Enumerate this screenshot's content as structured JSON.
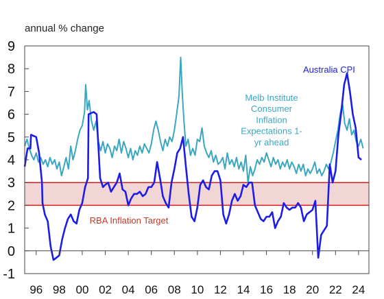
{
  "chart_data": {
    "type": "line",
    "ylabel": "annual % change",
    "ylim": [
      -1,
      9
    ],
    "xlim": [
      1995,
      2024.9
    ],
    "yticks": [
      "9",
      "8",
      "7",
      "6",
      "5",
      "4",
      "3",
      "2",
      "1",
      "0",
      "-1"
    ],
    "xticks": [
      "96",
      "98",
      "00",
      "02",
      "04",
      "06",
      "08",
      "10",
      "12",
      "14",
      "16",
      "18",
      "20",
      "22",
      "24"
    ],
    "grid": false,
    "band": {
      "label": "RBA Inflation Target",
      "low": 2,
      "high": 3,
      "color": "#f2d6d6",
      "line_color": "#d41e1e"
    },
    "series": [
      {
        "name": "Melb Institute Consumer Inflation Expectations 1-yr ahead",
        "color": "#3aa6c0",
        "points": [
          [
            1995.0,
            4.6
          ],
          [
            1995.2,
            4.9
          ],
          [
            1995.4,
            4.5
          ],
          [
            1995.6,
            4.2
          ],
          [
            1995.8,
            4.0
          ],
          [
            1996.0,
            4.3
          ],
          [
            1996.2,
            3.9
          ],
          [
            1996.4,
            4.1
          ],
          [
            1996.6,
            3.8
          ],
          [
            1996.8,
            4.0
          ],
          [
            1997.0,
            3.7
          ],
          [
            1997.2,
            4.1
          ],
          [
            1997.4,
            3.8
          ],
          [
            1997.6,
            4.0
          ],
          [
            1997.8,
            3.6
          ],
          [
            1998.0,
            3.9
          ],
          [
            1998.2,
            3.3
          ],
          [
            1998.4,
            3.7
          ],
          [
            1998.6,
            4.1
          ],
          [
            1998.8,
            3.6
          ],
          [
            1999.0,
            4.6
          ],
          [
            1999.2,
            4.0
          ],
          [
            1999.4,
            4.4
          ],
          [
            1999.6,
            4.9
          ],
          [
            1999.8,
            5.3
          ],
          [
            2000.0,
            5.5
          ],
          [
            2000.2,
            6.1
          ],
          [
            2000.3,
            7.3
          ],
          [
            2000.45,
            6.2
          ],
          [
            2000.6,
            6.6
          ],
          [
            2000.8,
            5.7
          ],
          [
            2001.0,
            5.3
          ],
          [
            2001.2,
            5.7
          ],
          [
            2001.4,
            4.8
          ],
          [
            2001.6,
            4.4
          ],
          [
            2001.8,
            4.8
          ],
          [
            2002.0,
            4.3
          ],
          [
            2002.2,
            4.7
          ],
          [
            2002.4,
            4.5
          ],
          [
            2002.6,
            4.1
          ],
          [
            2002.8,
            4.6
          ],
          [
            2003.0,
            4.4
          ],
          [
            2003.2,
            4.9
          ],
          [
            2003.4,
            4.3
          ],
          [
            2003.6,
            4.8
          ],
          [
            2003.8,
            4.5
          ],
          [
            2004.0,
            4.1
          ],
          [
            2004.2,
            4.5
          ],
          [
            2004.4,
            4.0
          ],
          [
            2004.6,
            4.4
          ],
          [
            2004.8,
            4.2
          ],
          [
            2005.0,
            4.6
          ],
          [
            2005.2,
            4.3
          ],
          [
            2005.4,
            4.7
          ],
          [
            2005.6,
            4.5
          ],
          [
            2005.8,
            4.3
          ],
          [
            2006.0,
            4.7
          ],
          [
            2006.2,
            5.3
          ],
          [
            2006.4,
            5.7
          ],
          [
            2006.6,
            5.3
          ],
          [
            2006.8,
            4.8
          ],
          [
            2007.0,
            4.4
          ],
          [
            2007.2,
            4.9
          ],
          [
            2007.4,
            4.6
          ],
          [
            2007.6,
            5.0
          ],
          [
            2007.8,
            4.8
          ],
          [
            2008.0,
            5.3
          ],
          [
            2008.2,
            6.0
          ],
          [
            2008.4,
            6.8
          ],
          [
            2008.55,
            8.5
          ],
          [
            2008.7,
            6.8
          ],
          [
            2008.85,
            5.6
          ],
          [
            2009.0,
            4.6
          ],
          [
            2009.2,
            4.9
          ],
          [
            2009.4,
            4.2
          ],
          [
            2009.6,
            4.5
          ],
          [
            2009.8,
            4.2
          ],
          [
            2010.0,
            4.9
          ],
          [
            2010.2,
            4.8
          ],
          [
            2010.4,
            5.4
          ],
          [
            2010.6,
            4.6
          ],
          [
            2010.8,
            4.3
          ],
          [
            2011.0,
            4.1
          ],
          [
            2011.2,
            4.4
          ],
          [
            2011.4,
            3.9
          ],
          [
            2011.6,
            4.2
          ],
          [
            2011.8,
            3.8
          ],
          [
            2012.0,
            3.9
          ],
          [
            2012.2,
            4.1
          ],
          [
            2012.4,
            3.6
          ],
          [
            2012.6,
            4.3
          ],
          [
            2012.8,
            3.8
          ],
          [
            2013.0,
            4.0
          ],
          [
            2013.2,
            3.7
          ],
          [
            2013.4,
            4.1
          ],
          [
            2013.6,
            3.6
          ],
          [
            2013.8,
            3.9
          ],
          [
            2014.0,
            3.5
          ],
          [
            2014.2,
            4.2
          ],
          [
            2014.4,
            3.0
          ],
          [
            2014.6,
            3.7
          ],
          [
            2014.8,
            3.3
          ],
          [
            2015.0,
            3.6
          ],
          [
            2015.2,
            4.0
          ],
          [
            2015.4,
            3.8
          ],
          [
            2015.6,
            4.1
          ],
          [
            2015.8,
            3.9
          ],
          [
            2016.0,
            4.3
          ],
          [
            2016.2,
            4.0
          ],
          [
            2016.4,
            3.7
          ],
          [
            2016.6,
            4.1
          ],
          [
            2016.8,
            3.8
          ],
          [
            2017.0,
            4.0
          ],
          [
            2017.2,
            3.6
          ],
          [
            2017.4,
            3.9
          ],
          [
            2017.6,
            3.7
          ],
          [
            2017.8,
            4.0
          ],
          [
            2018.0,
            3.6
          ],
          [
            2018.2,
            3.9
          ],
          [
            2018.4,
            3.7
          ],
          [
            2018.6,
            3.4
          ],
          [
            2018.8,
            3.8
          ],
          [
            2019.0,
            3.5
          ],
          [
            2019.2,
            3.8
          ],
          [
            2019.4,
            3.3
          ],
          [
            2019.6,
            3.6
          ],
          [
            2019.8,
            3.4
          ],
          [
            2020.0,
            3.6
          ],
          [
            2020.2,
            3.9
          ],
          [
            2020.4,
            3.4
          ],
          [
            2020.6,
            3.6
          ],
          [
            2020.8,
            3.3
          ],
          [
            2021.0,
            3.5
          ],
          [
            2021.2,
            3.8
          ],
          [
            2021.4,
            3.6
          ],
          [
            2021.6,
            3.9
          ],
          [
            2021.8,
            4.3
          ],
          [
            2022.0,
            4.8
          ],
          [
            2022.2,
            5.3
          ],
          [
            2022.4,
            6.0
          ],
          [
            2022.6,
            6.5
          ],
          [
            2022.8,
            5.6
          ],
          [
            2023.0,
            5.3
          ],
          [
            2023.2,
            5.8
          ],
          [
            2023.4,
            5.1
          ],
          [
            2023.6,
            5.3
          ],
          [
            2023.8,
            4.8
          ],
          [
            2024.0,
            4.6
          ],
          [
            2024.2,
            4.9
          ],
          [
            2024.4,
            4.5
          ]
        ]
      },
      {
        "name": "Australia CPI",
        "color": "#1c1ce6",
        "points": [
          [
            1995.0,
            3.7
          ],
          [
            1995.25,
            4.5
          ],
          [
            1995.5,
            4.5
          ],
          [
            1995.55,
            5.1
          ],
          [
            1996.0,
            5.0
          ],
          [
            1996.25,
            4.3
          ],
          [
            1996.5,
            3.0
          ],
          [
            1996.55,
            2.1
          ],
          [
            1996.75,
            1.6
          ],
          [
            1997.0,
            1.3
          ],
          [
            1997.25,
            0.2
          ],
          [
            1997.5,
            -0.4
          ],
          [
            1997.75,
            -0.3
          ],
          [
            1998.0,
            -0.2
          ],
          [
            1998.25,
            0.5
          ],
          [
            1998.5,
            1.0
          ],
          [
            1998.75,
            1.4
          ],
          [
            1999.0,
            1.6
          ],
          [
            1999.25,
            1.3
          ],
          [
            1999.5,
            1.2
          ],
          [
            1999.75,
            1.8
          ],
          [
            2000.0,
            2.1
          ],
          [
            2000.25,
            2.8
          ],
          [
            2000.5,
            3.2
          ],
          [
            2000.55,
            6.0
          ],
          [
            2001.0,
            6.1
          ],
          [
            2001.25,
            6.0
          ],
          [
            2001.55,
            3.2
          ],
          [
            2001.8,
            2.8
          ],
          [
            2002.0,
            2.9
          ],
          [
            2002.25,
            3.0
          ],
          [
            2002.5,
            2.6
          ],
          [
            2002.75,
            2.8
          ],
          [
            2003.0,
            3.0
          ],
          [
            2003.25,
            3.4
          ],
          [
            2003.5,
            2.7
          ],
          [
            2003.75,
            2.6
          ],
          [
            2004.0,
            2.0
          ],
          [
            2004.25,
            2.3
          ],
          [
            2004.5,
            2.5
          ],
          [
            2004.75,
            2.5
          ],
          [
            2005.0,
            2.6
          ],
          [
            2005.25,
            2.4
          ],
          [
            2005.5,
            2.5
          ],
          [
            2005.75,
            2.8
          ],
          [
            2006.0,
            2.8
          ],
          [
            2006.25,
            3.0
          ],
          [
            2006.5,
            3.9
          ],
          [
            2006.75,
            3.2
          ],
          [
            2007.0,
            2.4
          ],
          [
            2007.25,
            2.1
          ],
          [
            2007.5,
            1.9
          ],
          [
            2007.75,
            3.0
          ],
          [
            2008.0,
            3.6
          ],
          [
            2008.25,
            4.3
          ],
          [
            2008.5,
            4.5
          ],
          [
            2008.75,
            5.0
          ],
          [
            2009.0,
            3.7
          ],
          [
            2009.25,
            2.5
          ],
          [
            2009.5,
            1.5
          ],
          [
            2009.75,
            1.3
          ],
          [
            2010.0,
            1.9
          ],
          [
            2010.25,
            2.9
          ],
          [
            2010.5,
            3.1
          ],
          [
            2010.75,
            2.8
          ],
          [
            2011.0,
            2.7
          ],
          [
            2011.25,
            3.3
          ],
          [
            2011.5,
            3.5
          ],
          [
            2011.75,
            3.5
          ],
          [
            2012.0,
            3.1
          ],
          [
            2012.25,
            1.6
          ],
          [
            2012.5,
            1.2
          ],
          [
            2012.75,
            1.6
          ],
          [
            2013.0,
            2.2
          ],
          [
            2013.25,
            2.5
          ],
          [
            2013.5,
            2.2
          ],
          [
            2013.75,
            2.4
          ],
          [
            2014.0,
            2.9
          ],
          [
            2014.25,
            2.8
          ],
          [
            2014.5,
            3.0
          ],
          [
            2014.75,
            3.0
          ],
          [
            2015.0,
            2.0
          ],
          [
            2015.25,
            1.7
          ],
          [
            2015.5,
            1.4
          ],
          [
            2015.75,
            1.3
          ],
          [
            2016.0,
            1.5
          ],
          [
            2016.25,
            1.5
          ],
          [
            2016.5,
            1.7
          ],
          [
            2016.75,
            1.0
          ],
          [
            2017.0,
            1.3
          ],
          [
            2017.25,
            1.5
          ],
          [
            2017.5,
            2.1
          ],
          [
            2017.75,
            1.9
          ],
          [
            2018.0,
            1.8
          ],
          [
            2018.25,
            1.9
          ],
          [
            2018.5,
            1.9
          ],
          [
            2018.75,
            2.1
          ],
          [
            2019.0,
            1.9
          ],
          [
            2019.25,
            1.3
          ],
          [
            2019.5,
            1.6
          ],
          [
            2019.75,
            1.7
          ],
          [
            2020.0,
            1.8
          ],
          [
            2020.25,
            2.2
          ],
          [
            2020.5,
            -0.3
          ],
          [
            2020.75,
            0.7
          ],
          [
            2021.0,
            0.9
          ],
          [
            2021.25,
            1.1
          ],
          [
            2021.5,
            3.8
          ],
          [
            2021.75,
            3.0
          ],
          [
            2022.0,
            3.5
          ],
          [
            2022.25,
            5.1
          ],
          [
            2022.5,
            6.1
          ],
          [
            2022.75,
            7.3
          ],
          [
            2023.0,
            7.8
          ],
          [
            2023.25,
            7.0
          ],
          [
            2023.5,
            6.0
          ],
          [
            2023.75,
            5.4
          ],
          [
            2024.0,
            4.1
          ],
          [
            2024.25,
            4.0
          ]
        ]
      }
    ],
    "annotations": {
      "cpi": "Australia CPI",
      "expectations": [
        "Melb Institute",
        "Consumer",
        "Inflation",
        "Expectations 1-",
        "yr ahead"
      ],
      "target": "RBA Inflation Target"
    }
  }
}
